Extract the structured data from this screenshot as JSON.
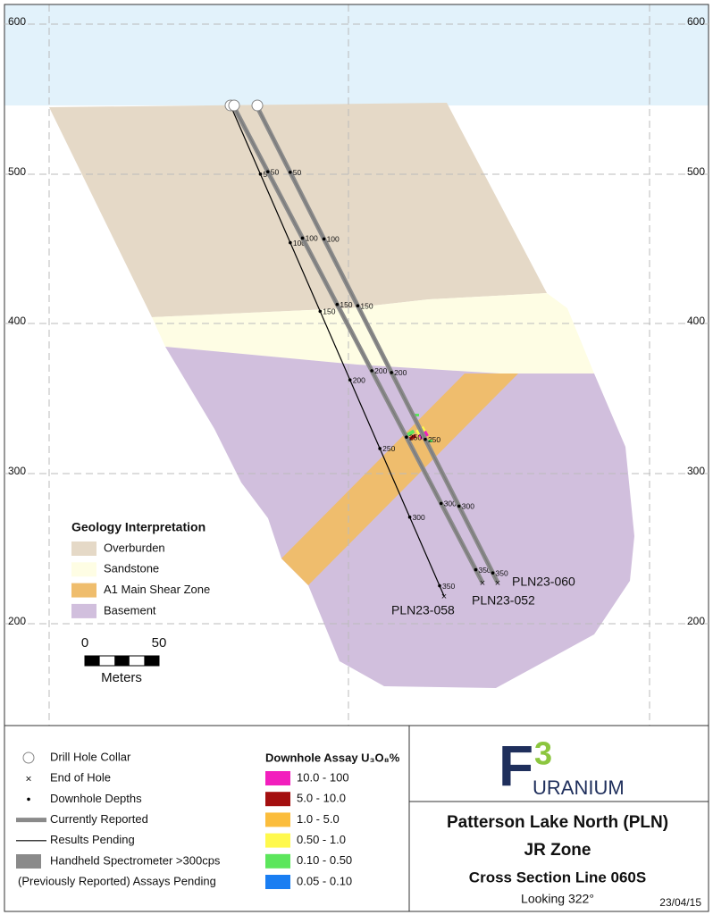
{
  "elevation_labels": [
    "600",
    "500",
    "400",
    "300",
    "200"
  ],
  "drill_holes": [
    {
      "name": "PLN23-058",
      "depths": [
        50,
        100,
        150,
        200,
        250,
        300,
        350
      ]
    },
    {
      "name": "PLN23-052",
      "depths": [
        50,
        100,
        150,
        200,
        250,
        300,
        350
      ]
    },
    {
      "name": "PLN23-060",
      "depths": [
        50,
        100,
        150,
        200,
        250,
        300,
        350
      ]
    }
  ],
  "geology_legend": {
    "title": "Geology Interpretation",
    "items": [
      "Overburden",
      "Sandstone",
      "A1 Main Shear Zone",
      "Basement"
    ]
  },
  "scale_bar": {
    "labels": [
      "0",
      "50"
    ],
    "unit": "Meters"
  },
  "symbol_legend": [
    "Drill Hole Collar",
    "End of Hole",
    "Downhole Depths",
    "Currently Reported",
    "Results Pending",
    "Handheld Spectrometer >300cps",
    "(Previously Reported) Assays Pending"
  ],
  "assay_legend": {
    "title": "Downhole Assay U₃O₈%",
    "items": [
      "10.0 - 100",
      "5.0 - 10.0",
      "1.0 - 5.0",
      "0.50 - 1.0",
      "0.10 - 0.50",
      "0.05 - 0.10"
    ]
  },
  "logo": {
    "letter": "F",
    "number": "3",
    "word": "URANIUM"
  },
  "title_block": {
    "project": "Patterson Lake North (PLN)",
    "zone": "JR Zone",
    "section": "Cross Section Line 060S",
    "view": "Looking 322°",
    "date": "23/04/15"
  }
}
